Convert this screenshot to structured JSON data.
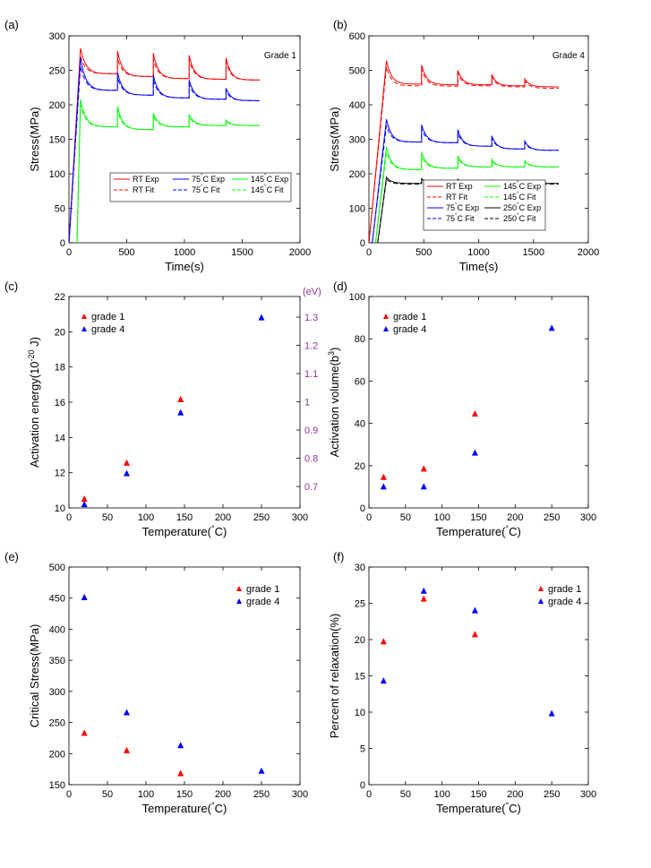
{
  "chart_data": [
    {
      "id": "a",
      "type": "line",
      "panel_label": "(a)",
      "annotation": "Grade 1",
      "xlabel": "Time(s)",
      "ylabel": "Stress(MPa)",
      "xlim": [
        0,
        2000
      ],
      "ylim": [
        0,
        300
      ],
      "xticks": [
        0,
        500,
        1000,
        1500,
        2000
      ],
      "yticks": [
        0,
        50,
        100,
        150,
        200,
        250,
        300
      ],
      "relaxation": {
        "hold_starts": [
          100,
          420,
          730,
          1040,
          1360
        ],
        "end_time": 1650,
        "fit_offset_mpa": 3
      },
      "series": [
        {
          "name": "RT Exp",
          "legend": "RT Exp",
          "color": "#ff0000",
          "dash": false,
          "start_time": 0,
          "peaks": [
            282,
            278,
            275,
            272,
            268
          ],
          "ends": [
            245,
            241,
            238,
            237,
            236
          ]
        },
        {
          "name": "RT Fit",
          "legend": "RT Fit",
          "color": "#ff0000",
          "dash": true,
          "start_time": 0,
          "peaks": [
            270,
            268,
            266,
            265,
            262
          ],
          "ends": [
            245,
            241,
            238,
            237,
            236
          ]
        },
        {
          "name": "75C Exp",
          "legend": "75°C Exp",
          "color": "#0000ff",
          "dash": false,
          "start_time": 0,
          "peaks": [
            268,
            247,
            243,
            236,
            224
          ],
          "ends": [
            221,
            214,
            210,
            208,
            206
          ]
        },
        {
          "name": "75C Fit",
          "legend": "75°C Fit",
          "color": "#0000ff",
          "dash": true,
          "start_time": 0,
          "peaks": [
            256,
            240,
            236,
            230,
            220
          ],
          "ends": [
            221,
            214,
            210,
            208,
            206
          ]
        },
        {
          "name": "145C Exp",
          "legend": "145°C Exp",
          "color": "#00ff00",
          "dash": false,
          "start_time": 70,
          "peaks": [
            208,
            198,
            188,
            186,
            178
          ],
          "ends": [
            168,
            164,
            168,
            170,
            170
          ]
        },
        {
          "name": "145C Fit",
          "legend": "145°C Fit",
          "color": "#00ff00",
          "dash": true,
          "start_time": 70,
          "peaks": [
            200,
            192,
            184,
            182,
            176
          ],
          "ends": [
            168,
            164,
            168,
            170,
            170
          ]
        }
      ]
    },
    {
      "id": "b",
      "type": "line",
      "panel_label": "(b)",
      "annotation": "Grade 4",
      "xlabel": "Time(s)",
      "ylabel": "Stress(MPa)",
      "xlim": [
        0,
        2000
      ],
      "ylim": [
        0,
        600
      ],
      "xticks": [
        0,
        500,
        1000,
        1500,
        2000
      ],
      "yticks": [
        0,
        100,
        200,
        300,
        400,
        500,
        600
      ],
      "relaxation": {
        "hold_starts": [
          160,
          480,
          810,
          1120,
          1420
        ],
        "end_time": 1730,
        "fit_offset_mpa": 6
      },
      "series": [
        {
          "name": "RT Exp",
          "legend": "RT Exp",
          "color": "#ff0000",
          "dash": false,
          "start_time": 0,
          "peaks": [
            528,
            515,
            500,
            488,
            475
          ],
          "ends": [
            460,
            458,
            458,
            455,
            452
          ]
        },
        {
          "name": "RT Fit",
          "legend": "RT Fit",
          "color": "#ff0000",
          "dash": true,
          "start_time": 0,
          "peaks": [
            510,
            503,
            492,
            482,
            470
          ],
          "ends": [
            455,
            454,
            455,
            452,
            448
          ]
        },
        {
          "name": "145C Exp",
          "legend": "145°C Exp",
          "color": "#00ff00",
          "dash": false,
          "start_time": 60,
          "peaks": [
            278,
            262,
            252,
            242,
            238
          ],
          "ends": [
            212,
            216,
            220,
            220,
            220
          ]
        },
        {
          "name": "145C Fit",
          "legend": "145°C Fit",
          "color": "#00ff00",
          "dash": true,
          "start_time": 60,
          "peaks": [
            262,
            250,
            245,
            238,
            235
          ],
          "ends": [
            212,
            216,
            220,
            220,
            220
          ]
        },
        {
          "name": "75C Exp",
          "legend": "75°C Exp",
          "color": "#0000ff",
          "dash": false,
          "start_time": 30,
          "peaks": [
            358,
            342,
            328,
            310,
            295
          ],
          "ends": [
            292,
            290,
            280,
            272,
            268
          ]
        },
        {
          "name": "75C Fit",
          "legend": "75°C Fit",
          "color": "#0000ff",
          "dash": true,
          "start_time": 30,
          "peaks": [
            340,
            330,
            318,
            303,
            290
          ],
          "ends": [
            292,
            290,
            280,
            272,
            268
          ]
        },
        {
          "name": "250C Exp",
          "legend": "250°C Exp",
          "color": "#000000",
          "dash": false,
          "start_time": 80,
          "peaks": [
            190,
            186,
            184,
            182,
            180
          ],
          "ends": [
            172,
            172,
            172,
            172,
            172
          ]
        },
        {
          "name": "250C Fit",
          "legend": "250°C Fit",
          "color": "#000000",
          "dash": true,
          "start_time": 80,
          "peaks": [
            184,
            182,
            180,
            179,
            178
          ],
          "ends": [
            170,
            170,
            170,
            170,
            170
          ]
        }
      ]
    },
    {
      "id": "c",
      "type": "scatter",
      "panel_label": "(c)",
      "xlabel": "Temperature(°C)",
      "ylabel": "Activation energy(10",
      "ylabel_exp": "-20",
      "ylabel_unit": " J)",
      "y2label": "(eV)",
      "y2color": "#993399",
      "y2ticks": [
        0.7,
        0.8,
        0.9,
        1.0,
        1.1,
        1.2,
        1.3
      ],
      "y2ticklabels": [
        "0.7",
        "0.8",
        "0.9",
        "1",
        "1.1",
        "1.2",
        "1.3"
      ],
      "xlim": [
        0,
        300
      ],
      "ylim": [
        10,
        22
      ],
      "xticks": [
        0,
        50,
        100,
        150,
        200,
        250,
        300
      ],
      "yticks": [
        10,
        12,
        14,
        16,
        18,
        20,
        22
      ],
      "series": [
        {
          "name": "grade 1",
          "color": "#ff0000",
          "x": [
            20,
            75,
            145
          ],
          "y": [
            10.5,
            12.55,
            16.15
          ]
        },
        {
          "name": "grade 4",
          "color": "#0000ff",
          "x": [
            20,
            75,
            145,
            250
          ],
          "y": [
            10.2,
            11.95,
            15.4,
            20.8
          ]
        }
      ]
    },
    {
      "id": "d",
      "type": "scatter",
      "panel_label": "(d)",
      "xlabel": "Temperature(°C)",
      "ylabel": "Activation volume(b",
      "ylabel_exp": "3",
      "ylabel_unit": ")",
      "xlim": [
        0,
        300
      ],
      "ylim": [
        0,
        100
      ],
      "xticks": [
        0,
        50,
        100,
        150,
        200,
        250,
        300
      ],
      "yticks": [
        0,
        20,
        40,
        60,
        80,
        100
      ],
      "series": [
        {
          "name": "grade 1",
          "color": "#ff0000",
          "x": [
            20,
            75,
            145
          ],
          "y": [
            14.5,
            18.5,
            44.5
          ]
        },
        {
          "name": "grade 4",
          "color": "#0000ff",
          "x": [
            20,
            75,
            145,
            250
          ],
          "y": [
            10,
            10,
            26,
            85
          ]
        }
      ]
    },
    {
      "id": "e",
      "type": "scatter",
      "panel_label": "(e)",
      "xlabel": "Temperature(°C)",
      "ylabel": "Critical Stress(MPa)",
      "xlim": [
        0,
        300
      ],
      "ylim": [
        150,
        500
      ],
      "xticks": [
        0,
        50,
        100,
        150,
        200,
        250,
        300
      ],
      "yticks": [
        150,
        200,
        250,
        300,
        350,
        400,
        450,
        500
      ],
      "series": [
        {
          "name": "grade 1",
          "color": "#ff0000",
          "x": [
            20,
            75,
            145
          ],
          "y": [
            233,
            205,
            168
          ]
        },
        {
          "name": "grade 4",
          "color": "#0000ff",
          "x": [
            20,
            75,
            145,
            250
          ],
          "y": [
            451,
            266,
            213,
            172
          ]
        }
      ]
    },
    {
      "id": "f",
      "type": "scatter",
      "panel_label": "(f)",
      "xlabel": "Temperature(°C)",
      "ylabel": "Percent of relaxation(%)",
      "xlim": [
        0,
        300
      ],
      "ylim": [
        0,
        30
      ],
      "xticks": [
        0,
        50,
        100,
        150,
        200,
        250,
        300
      ],
      "yticks": [
        0,
        5,
        10,
        15,
        20,
        25,
        30
      ],
      "series": [
        {
          "name": "grade 1",
          "color": "#ff0000",
          "x": [
            20,
            75,
            145
          ],
          "y": [
            19.7,
            25.6,
            20.7
          ]
        },
        {
          "name": "grade 4",
          "color": "#0000ff",
          "x": [
            20,
            75,
            145,
            250
          ],
          "y": [
            14.3,
            26.7,
            24,
            9.8
          ]
        }
      ]
    }
  ]
}
